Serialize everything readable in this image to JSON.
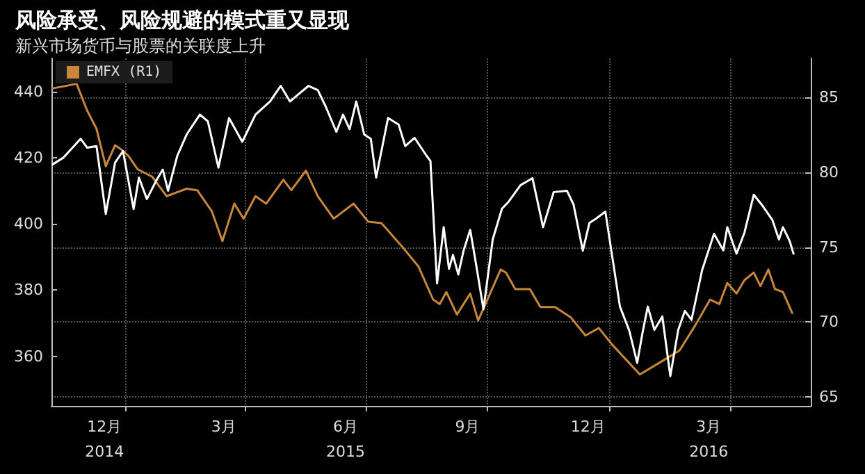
{
  "chart_data": {
    "type": "line",
    "title": "风险承受、风险规避的模式重又显现",
    "subtitle": "新兴市场货币与股票的关联度上升",
    "xlim": [
      "2014-11-06",
      "2016-06-01"
    ],
    "xticks": [
      {
        "value": "2015-01-01",
        "label": null
      },
      {
        "value": "2015-04-01",
        "label": null
      },
      {
        "value": "2015-07-01",
        "label": null
      },
      {
        "value": "2015-10-01",
        "label": null
      },
      {
        "value": "2016-01-01",
        "label": null
      },
      {
        "value": "2016-04-01",
        "label": null
      },
      {
        "value": "2014-12-16",
        "label": "12月\n2014"
      },
      {
        "value": "2015-03-16",
        "label": "3月"
      },
      {
        "value": "2015-06-16",
        "label": "6月\n2015"
      },
      {
        "value": "2015-09-16",
        "label": "9月"
      },
      {
        "value": "2015-12-16",
        "label": "12月"
      },
      {
        "value": "2016-03-16",
        "label": "3月\n2016"
      }
    ],
    "ylim": [
      345,
      450
    ],
    "yticks": [
      360,
      380,
      400,
      420,
      440
    ],
    "y2lim": [
      64.4,
      87.6
    ],
    "y2ticks": [
      65,
      70,
      75,
      80,
      85
    ],
    "grid": true,
    "legend": "top left",
    "marker": "none",
    "line_style": "solid",
    "series": [
      {
        "name": "EMFX (R1)",
        "color": "#c8873a",
        "axis": "y2",
        "x": [
          "2014-11-07",
          "2014-11-25",
          "2014-12-03",
          "2014-12-10",
          "2014-12-17",
          "2014-12-24",
          "2014-12-29",
          "2015-01-03",
          "2015-01-10",
          "2015-01-21",
          "2015-02-01",
          "2015-02-16",
          "2015-02-24",
          "2015-03-07",
          "2015-03-15",
          "2015-03-24",
          "2015-03-31",
          "2015-04-09",
          "2015-04-17",
          "2015-04-30",
          "2015-05-06",
          "2015-05-17",
          "2015-05-26",
          "2015-06-07",
          "2015-06-22",
          "2015-07-03",
          "2015-07-13",
          "2015-07-28",
          "2015-08-10",
          "2015-08-21",
          "2015-08-26",
          "2015-08-31",
          "2015-09-08",
          "2015-09-18",
          "2015-09-24",
          "2015-10-11",
          "2015-10-15",
          "2015-10-22",
          "2015-11-02",
          "2015-11-10",
          "2015-11-21",
          "2015-12-03",
          "2015-12-14",
          "2015-12-24",
          "2016-01-03",
          "2016-01-24",
          "2016-02-10",
          "2016-02-23",
          "2016-03-06",
          "2016-03-17",
          "2016-03-24",
          "2016-03-30",
          "2016-04-06",
          "2016-04-12",
          "2016-04-19",
          "2016-04-24",
          "2016-04-30",
          "2016-05-05",
          "2016-05-11",
          "2016-05-18"
        ],
        "values": [
          85.6,
          85.9,
          84.1,
          82.9,
          80.4,
          81.8,
          81.5,
          81.1,
          80.2,
          79.7,
          78.4,
          78.9,
          78.8,
          77.4,
          75.4,
          77.9,
          76.9,
          78.4,
          77.9,
          79.5,
          78.8,
          80.1,
          78.4,
          76.9,
          77.9,
          76.7,
          76.6,
          75.1,
          73.7,
          71.5,
          71.2,
          72.0,
          70.5,
          71.9,
          70.1,
          73.5,
          73.3,
          72.2,
          72.2,
          71.0,
          71.0,
          70.3,
          69.1,
          69.6,
          68.5,
          66.5,
          67.4,
          68.1,
          69.8,
          71.5,
          71.2,
          72.6,
          71.9,
          72.8,
          73.3,
          72.4,
          73.5,
          72.2,
          72.0,
          70.6
        ]
      },
      {
        "color": "#ffffff",
        "x": [
          "2014-11-07",
          "2014-11-15",
          "2014-11-28",
          "2014-12-03",
          "2014-12-10",
          "2014-12-17",
          "2014-12-24",
          "2014-12-30",
          "2015-01-07",
          "2015-01-11",
          "2015-01-17",
          "2015-01-24",
          "2015-01-29",
          "2015-02-02",
          "2015-02-09",
          "2015-02-16",
          "2015-02-26",
          "2015-03-04",
          "2015-03-12",
          "2015-03-20",
          "2015-03-30",
          "2015-04-09",
          "2015-04-20",
          "2015-04-28",
          "2015-05-05",
          "2015-05-19",
          "2015-05-26",
          "2015-06-01",
          "2015-06-09",
          "2015-06-14",
          "2015-06-19",
          "2015-06-24",
          "2015-06-30",
          "2015-07-05",
          "2015-07-09",
          "2015-07-18",
          "2015-07-26",
          "2015-07-31",
          "2015-08-07",
          "2015-08-16",
          "2015-08-19",
          "2015-08-24",
          "2015-08-29",
          "2015-09-02",
          "2015-09-05",
          "2015-09-09",
          "2015-09-13",
          "2015-09-18",
          "2015-09-23",
          "2015-09-28",
          "2015-10-05",
          "2015-10-12",
          "2015-10-17",
          "2015-10-26",
          "2015-11-04",
          "2015-11-12",
          "2015-11-20",
          "2015-11-30",
          "2015-12-05",
          "2015-12-12",
          "2015-12-17",
          "2015-12-22",
          "2015-12-29",
          "2016-01-03",
          "2016-01-09",
          "2016-01-16",
          "2016-01-22",
          "2016-01-26",
          "2016-01-30",
          "2016-02-04",
          "2016-02-10",
          "2016-02-16",
          "2016-02-22",
          "2016-02-27",
          "2016-03-03",
          "2016-03-11",
          "2016-03-20",
          "2016-03-27",
          "2016-03-30",
          "2016-04-06",
          "2016-04-12",
          "2016-04-19",
          "2016-04-25",
          "2016-05-03",
          "2016-05-08",
          "2016-05-11",
          "2016-05-16",
          "2016-05-19"
        ],
        "values": [
          418,
          420,
          425.7,
          423,
          423.5,
          403,
          418.5,
          422,
          404.5,
          414,
          407.5,
          413,
          416.4,
          410,
          420.6,
          427,
          433,
          431,
          417,
          432,
          424.8,
          433,
          437,
          441.7,
          437,
          441.7,
          440.4,
          435.4,
          427.8,
          433,
          428.6,
          437,
          427,
          425.7,
          414,
          432,
          430,
          423.5,
          426,
          420.6,
          419,
          382,
          399,
          386.4,
          390.6,
          384.7,
          391.9,
          398.2,
          386.4,
          374.2,
          395.3,
          404.6,
          406.7,
          411.7,
          413.8,
          399,
          409.6,
          410,
          405.8,
          391.9,
          400.3,
          401.6,
          403.7,
          390.6,
          375,
          367.8,
          358,
          367,
          375,
          368,
          372,
          354,
          368,
          373.7,
          371,
          386,
          397,
          392,
          399,
          391,
          397.4,
          408.8,
          405.8,
          401.2,
          395.3,
          399,
          394.9,
          391
        ]
      }
    ]
  }
}
